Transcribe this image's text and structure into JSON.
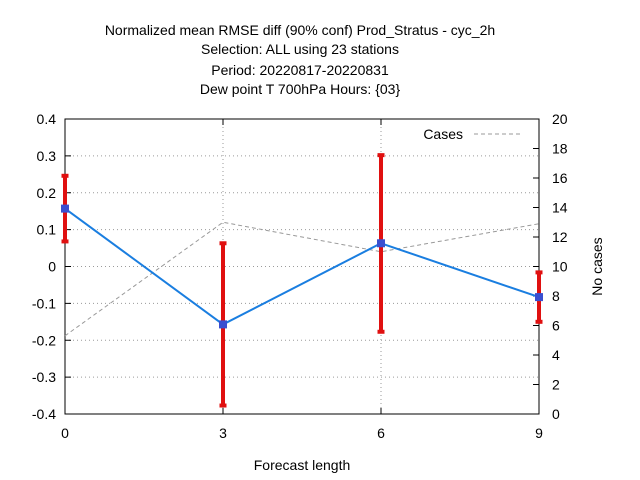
{
  "title_lines": [
    "Normalized mean RMSE diff (90% conf) Prod_Stratus - cyc_2h",
    "Selection: ALL using    23 stations",
    "Period: 20220817-20220831",
    "Dew point T 700hPa   Hours: {03}"
  ],
  "chart_data": {
    "type": "line",
    "title": "Normalized mean RMSE diff (90% conf) Prod_Stratus - cyc_2h",
    "xlabel": "Forecast length",
    "ylabel": "",
    "y2label": "No cases",
    "x": [
      0,
      3,
      6,
      9
    ],
    "xlim": [
      0,
      9
    ],
    "xticks": [
      0,
      3,
      6,
      9
    ],
    "ylim": [
      -0.4,
      0.4
    ],
    "yticks": [
      -0.4,
      -0.3,
      -0.2,
      -0.1,
      0,
      0.1,
      0.2,
      0.3,
      0.4
    ],
    "y2lim": [
      0,
      20
    ],
    "y2ticks": [
      0,
      2,
      4,
      6,
      8,
      10,
      12,
      14,
      16,
      18,
      20
    ],
    "grid": true,
    "legend": "top-right",
    "series": [
      {
        "style": "line-with-errorbars",
        "color": "#1a7ee0",
        "marker_color": "#3a4fd0",
        "errorbar_color": "#e01010",
        "values": [
          0.157,
          -0.157,
          0.063,
          -0.083
        ],
        "err_low": [
          0.068,
          -0.377,
          -0.177,
          -0.15
        ],
        "err_high": [
          0.246,
          0.063,
          0.302,
          -0.016
        ]
      },
      {
        "name": "Cases",
        "axis": "y2",
        "style": "dashed",
        "color": "#999999",
        "values": [
          5.3,
          13.0,
          11.0,
          12.9
        ]
      }
    ]
  }
}
